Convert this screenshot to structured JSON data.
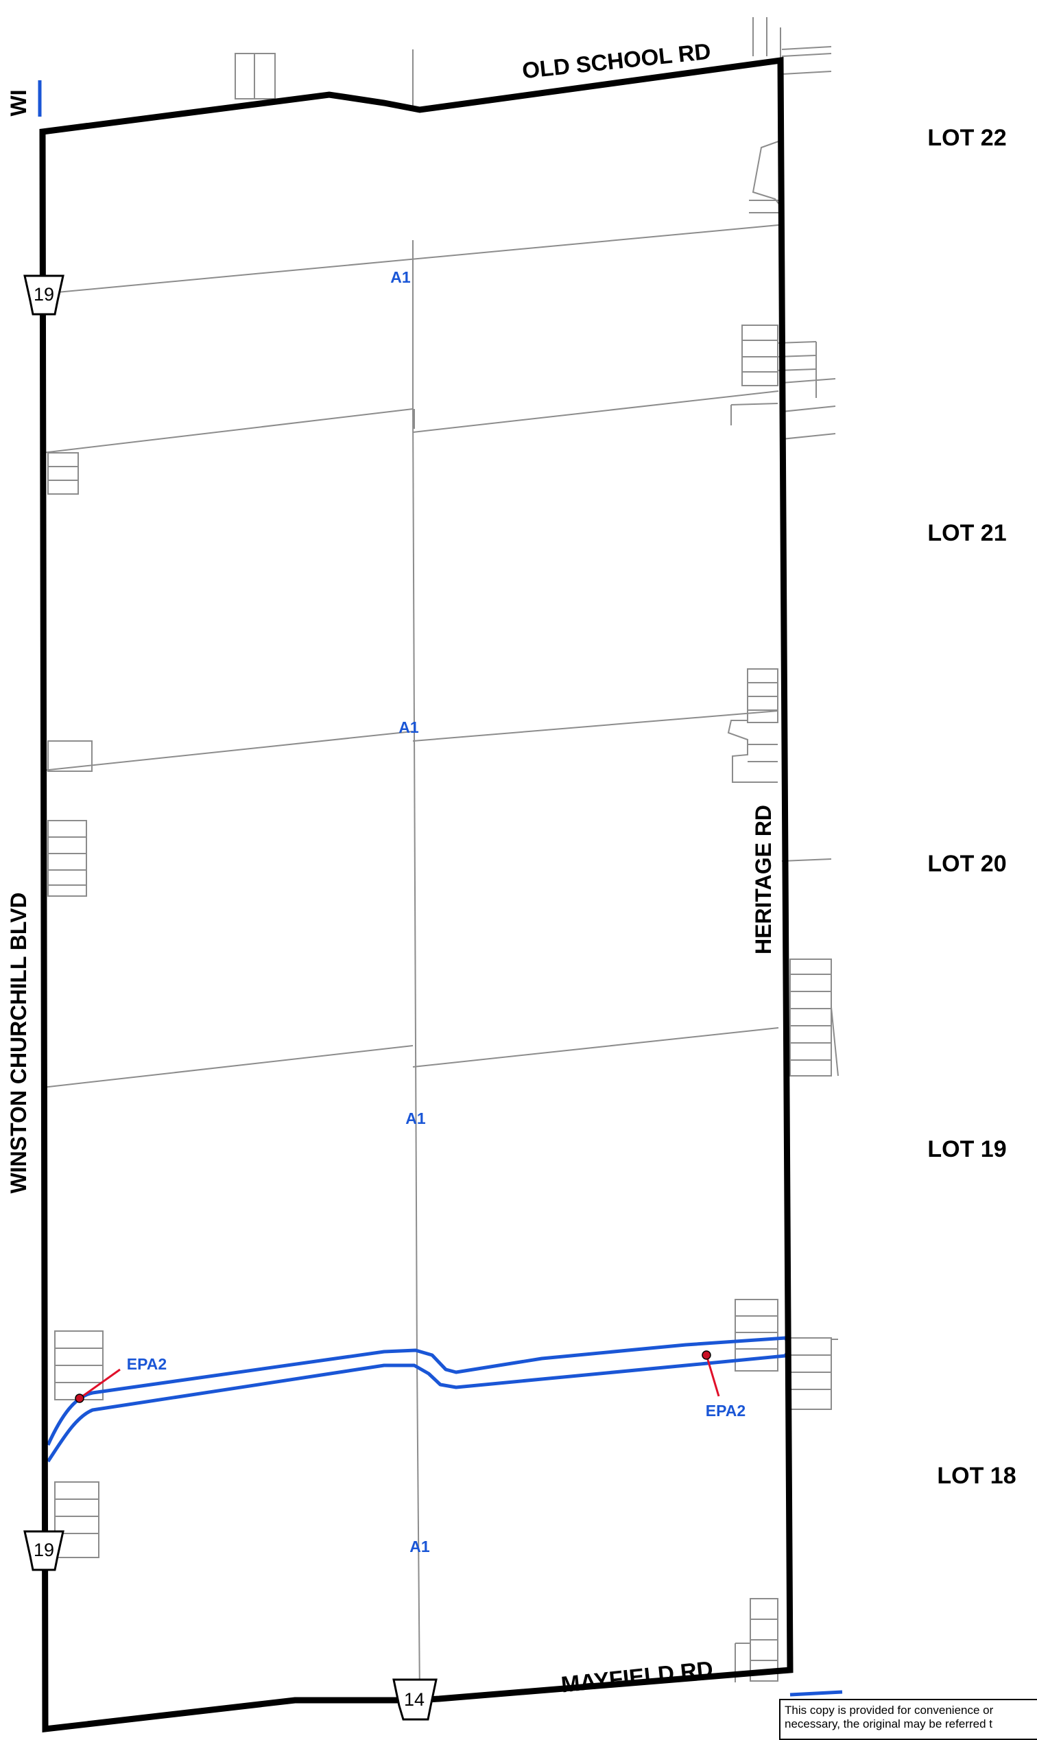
{
  "roads": {
    "north": "OLD SCHOOL RD",
    "south": "MAYFIELD RD",
    "east": "HERITAGE RD",
    "west": "WINSTON CHURCHILL BLVD",
    "west_partial": "WI"
  },
  "shields": {
    "highway_19_upper": "19",
    "highway_19_lower": "19",
    "highway_14": "14"
  },
  "lots": [
    "LOT 22",
    "LOT 21",
    "LOT 20",
    "LOT 19",
    "LOT 18"
  ],
  "zones": {
    "a1_1": "A1",
    "a1_2": "A1",
    "a1_3": "A1",
    "a1_4": "A1",
    "epa2_west": "EPA2",
    "epa2_east": "EPA2"
  },
  "colors": {
    "boundary": "#000000",
    "parcel_lines": "#8c8c8c",
    "zone_line": "#1a56d6",
    "zone_label": "#1a56d6",
    "callout": "#e0102a"
  },
  "disclaimer": {
    "line1": "This copy is provided for convenience or",
    "line2": "necessary, the original may be referred t"
  }
}
